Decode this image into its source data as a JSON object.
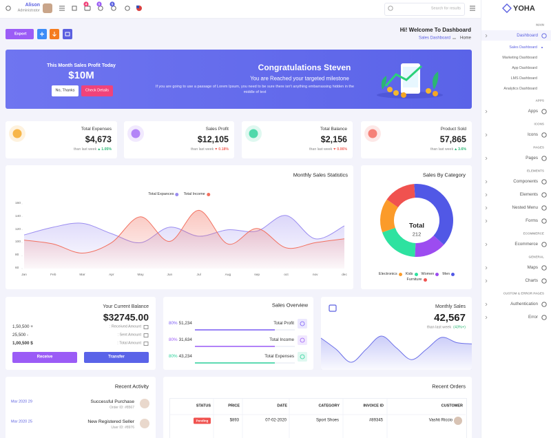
{
  "header": {
    "user_name": "Alison",
    "user_role": "Administrator",
    "badges": [
      4,
      5,
      5
    ],
    "search_placeholder": "Search for results"
  },
  "sidebar": {
    "logo": "YOHA",
    "sections": [
      {
        "title": "MAIN",
        "items": [
          {
            "label": "Dashboard",
            "active": true,
            "children": [
              "Sales Dashboard",
              "Marketing Dashboard",
              "App Dashboard",
              "LMS Dashboard",
              "Analytics Dashboard"
            ]
          }
        ]
      },
      {
        "title": "APPS",
        "items": [
          {
            "label": "Apps"
          }
        ]
      },
      {
        "title": "ICONS",
        "items": [
          {
            "label": "Icons"
          }
        ]
      },
      {
        "title": "PAGES",
        "items": [
          {
            "label": "Pages"
          }
        ]
      },
      {
        "title": "ELEMENTS",
        "items": [
          {
            "label": "Components"
          },
          {
            "label": "Elements"
          },
          {
            "label": "Nested Menu"
          },
          {
            "label": "Forms"
          }
        ]
      },
      {
        "title": "ECOMMERCE",
        "items": [
          {
            "label": "Ecommerce"
          }
        ]
      },
      {
        "title": "GENERAL",
        "items": [
          {
            "label": "Maps"
          },
          {
            "label": "Charts"
          }
        ]
      },
      {
        "title": "CUSTOM & ERROR PAGES",
        "items": [
          {
            "label": "Authentication"
          },
          {
            "label": "Error"
          }
        ]
      }
    ]
  },
  "toolbar": {
    "export": "Export",
    "welcome": "Hi! Welcome To Dashboard",
    "breadcrumb": [
      "Sales Dashboard",
      "Home"
    ]
  },
  "banner": {
    "kicker": "This Month Sales Profit Today",
    "amount": "$10M",
    "dismiss": "No, Thanks",
    "details": "Check Details",
    "title": "Congratulations Steven",
    "subtitle": "You are Reached your targeted milestone",
    "text": "If you are going to use a passage of Lorem Ipsum, you need to be sure there isn't anything embarrassing hidden in the middle of text"
  },
  "stats": [
    {
      "title": "Total Expenses",
      "value": "$4,673",
      "note": "than last week",
      "change": "1.05%",
      "trend": "up",
      "color": "#f5a623"
    },
    {
      "title": "Sales Profit",
      "value": "$12,105",
      "note": "than last week",
      "change": "0.18%",
      "trend": "down",
      "color": "#a46cf5"
    },
    {
      "title": "Total Balance",
      "value": "$2,156",
      "note": "than last week",
      "change": "0.06%",
      "trend": "down",
      "color": "#2bd19a"
    },
    {
      "title": "Product Sold",
      "value": "57,865",
      "note": "than last week",
      "change": "3.6%",
      "trend": "up",
      "color": "#f3665d"
    }
  ],
  "balance": {
    "title": "Your Current Balance",
    "amount": "$32745.00",
    "rows": [
      {
        "value": "1,50,500 +",
        "label": ": Received Amount"
      },
      {
        "value": "25,500 -",
        "label": ": Sent Amount"
      },
      {
        "value": "1,00,500 $",
        "label": ": Total Amount"
      }
    ],
    "receive": "Receive",
    "transfer": "Transfer"
  },
  "sales_overview": {
    "title": "Sales Overview",
    "rows": [
      {
        "progress": 80,
        "progress_label": "80%",
        "value": "51,234",
        "label": "Total Profit",
        "color": "#7b5cf5"
      },
      {
        "progress": 80,
        "progress_label": "80%",
        "value": "31,634",
        "label": "Total Income",
        "color": "#9b5cf6"
      },
      {
        "progress": 80,
        "progress_label": "80%",
        "value": "43,234",
        "label": "Total Expenses",
        "color": "#2bd19a"
      }
    ]
  },
  "monthly_sales": {
    "title": "Monthly Sales",
    "value": "42,567",
    "note": "than last week",
    "change": "(43%+)"
  },
  "recent_activity": {
    "title": "Recent Activity",
    "items": [
      {
        "date": "Mar 2020 29",
        "title": "Successful Purchase",
        "detail": "Order ID: #8567"
      },
      {
        "date": "Mar 2020 25",
        "title": "New Registered Seller",
        "detail": "User ID: #8976"
      }
    ]
  },
  "recent_orders": {
    "title": "Recent Orders",
    "columns": [
      "STATUS",
      "PRICE",
      "DATE",
      "CATEGORY",
      "INVOICE ID",
      "CUSTOMER"
    ],
    "rows": [
      [
        "Pending",
        "$893",
        "07-02-2020",
        "Sport Shoes",
        "#89345",
        "Vashti Riccio"
      ]
    ]
  },
  "chart_data": [
    {
      "type": "area",
      "title": "Monthly Sales Statistics",
      "categories": [
        "Jan",
        "Feb",
        "Mar",
        "Apr",
        "May",
        "Jun",
        "Jul",
        "Aug",
        "sep",
        "oct",
        "nov",
        "dec"
      ],
      "series": [
        {
          "name": "Total Expances",
          "color": "#9a8cf0",
          "values": [
            112,
            124,
            130,
            114,
            100,
            124,
            110,
            120,
            118,
            142,
            106,
            126
          ]
        },
        {
          "name": "Total Income",
          "color": "#f2705f",
          "values": [
            104,
            98,
            84,
            100,
            140,
            102,
            150,
            98,
            122,
            92,
            100,
            106
          ]
        }
      ],
      "ylim": [
        60,
        160
      ],
      "yticks": [
        60,
        80,
        100,
        120,
        140,
        160
      ]
    },
    {
      "type": "donut",
      "title": "Sales By Category",
      "center_label": "Total",
      "total": 212,
      "categories": [
        "Electronics",
        "Kids",
        "Women",
        "Men",
        "Furniture"
      ],
      "values": [
        32,
        40,
        30,
        80,
        30
      ],
      "colors": [
        "#fb9b2a",
        "#2ee2a0",
        "#9c4cf0",
        "#5158e6",
        "#f0524f"
      ]
    },
    {
      "type": "area",
      "color": "#6b6fe8",
      "values": [
        45,
        28,
        8,
        28,
        48,
        30,
        12,
        28,
        46,
        38,
        36
      ]
    }
  ]
}
